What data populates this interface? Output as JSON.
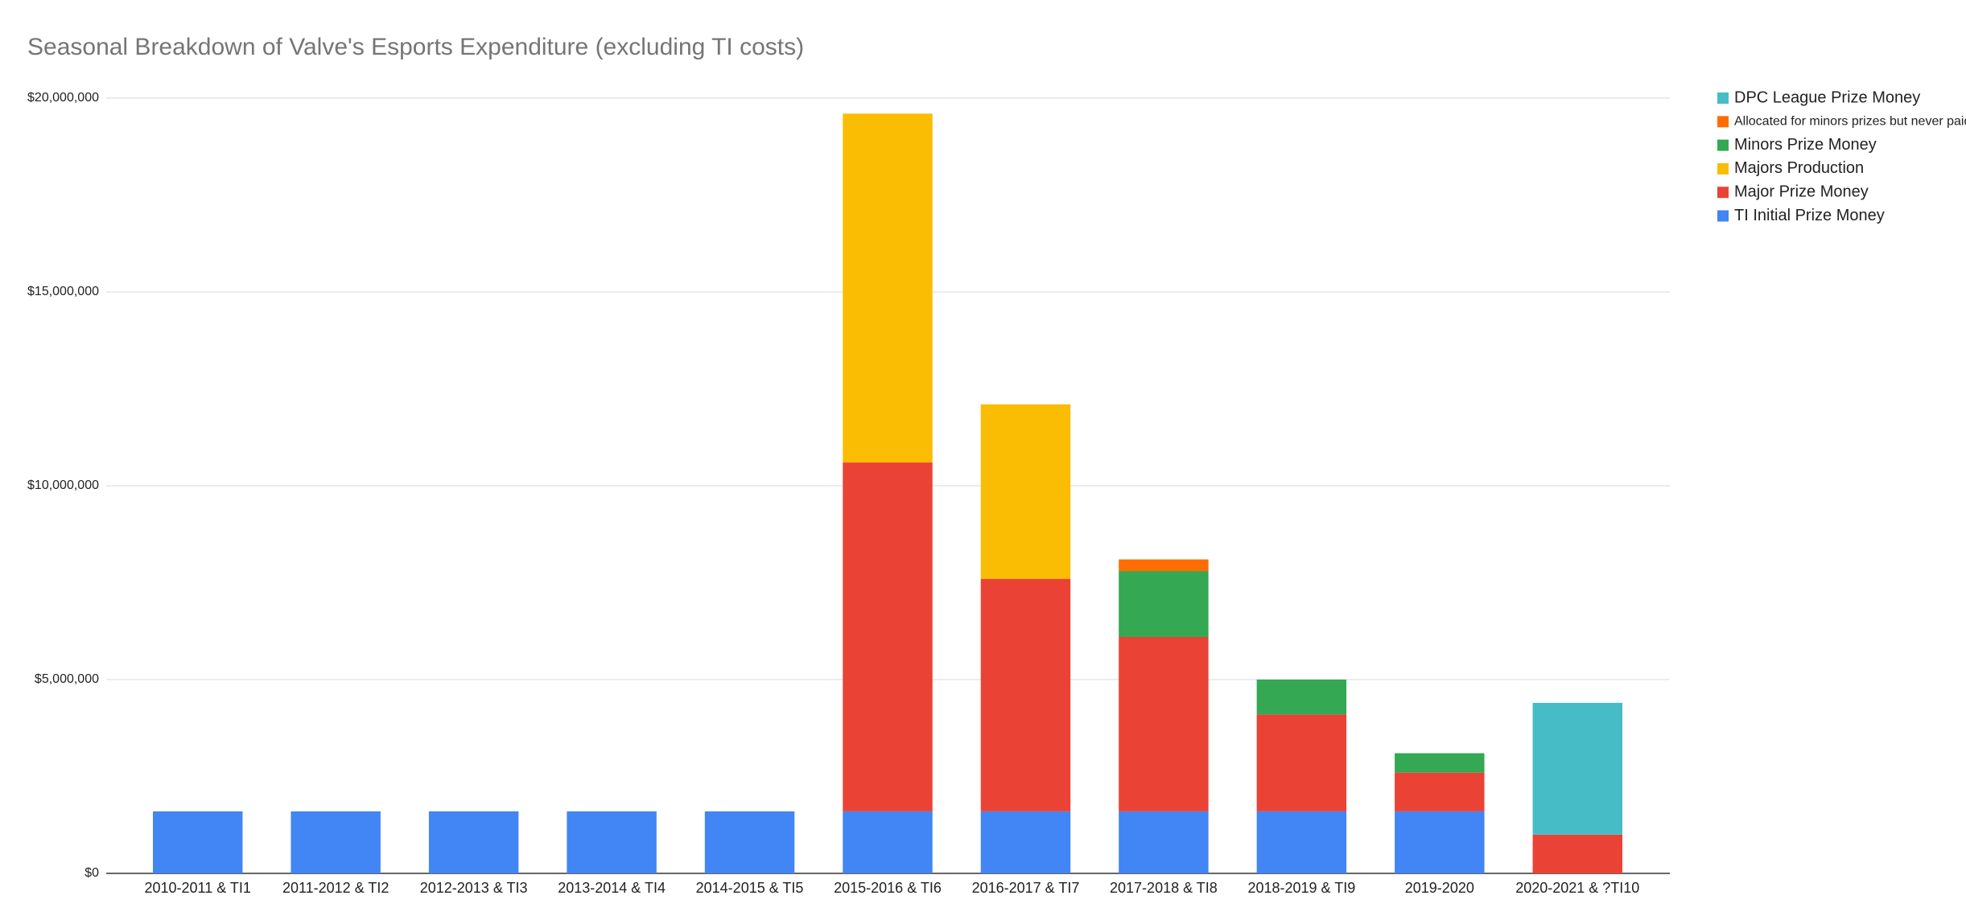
{
  "chart_data": {
    "type": "stacked-bar",
    "title": "Seasonal Breakdown of Valve's Esports Expenditure (excluding TI costs)",
    "categories": [
      "2010-2011 & TI1",
      "2011-2012 & TI2",
      "2012-2013 & TI3",
      "2013-2014 & TI4",
      "2014-2015 & TI5",
      "2015-2016 & TI6",
      "2016-2017 & TI7",
      "2017-2018 & TI8",
      "2018-2019 & TI9",
      "2019-2020",
      "2020-2021 & ?TI10"
    ],
    "series": [
      {
        "name": "TI Initial Prize Money",
        "color": "#4285f4",
        "values": [
          1600000,
          1600000,
          1600000,
          1600000,
          1600000,
          1600000,
          1600000,
          1600000,
          1600000,
          1600000,
          null
        ]
      },
      {
        "name": "Major Prize Money",
        "color": "#ea4335",
        "values": [
          null,
          null,
          null,
          null,
          null,
          9000000,
          6000000,
          4500000,
          2500000,
          1000000,
          1000000
        ]
      },
      {
        "name": "Majors Production",
        "color": "#fbbc04",
        "values": [
          null,
          null,
          null,
          null,
          null,
          9000000,
          4500000,
          null,
          null,
          null,
          null
        ]
      },
      {
        "name": "Minors Prize Money",
        "color": "#34a853",
        "values": [
          null,
          null,
          null,
          null,
          null,
          null,
          null,
          1700000,
          900000,
          500000,
          null
        ]
      },
      {
        "name": "Allocated for minors prizes but never paid",
        "color": "#ff6d01",
        "values": [
          null,
          null,
          null,
          null,
          null,
          null,
          null,
          300000,
          null,
          null,
          null
        ]
      },
      {
        "name": "DPC League Prize Money",
        "color": "#46bdc6",
        "values": [
          null,
          null,
          null,
          null,
          null,
          null,
          null,
          null,
          null,
          null,
          3400000
        ]
      }
    ],
    "ylim": [
      0,
      20000000
    ],
    "yticks": [
      {
        "value": 0,
        "label": "$0"
      },
      {
        "value": 5000000,
        "label": "$5,000,000"
      },
      {
        "value": 10000000,
        "label": "$10,000,000"
      },
      {
        "value": 15000000,
        "label": "$15,000,000"
      },
      {
        "value": 20000000,
        "label": "$20,000,000"
      }
    ],
    "grid": true,
    "legend": "right"
  }
}
